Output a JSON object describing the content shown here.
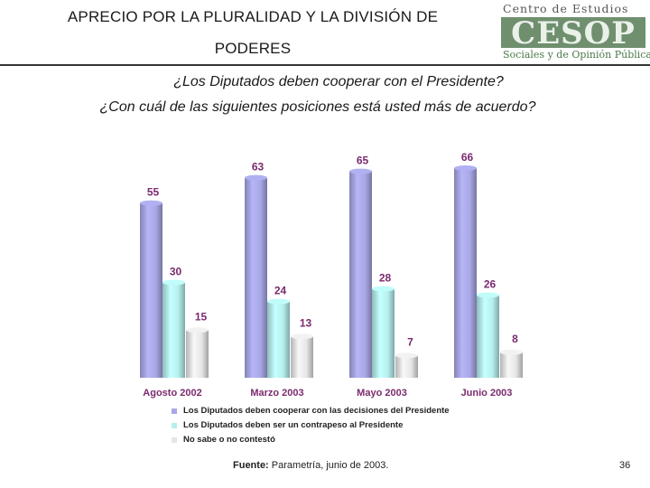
{
  "header": {
    "title_line_1": "APRECIO POR LA PLURALIDAD Y LA DIVISIÓN DE",
    "title_line_2": "PODERES"
  },
  "logo": {
    "top_text": "Centro de Estudios",
    "mark_text": "CESOP",
    "bottom_text": "Sociales y de Opinión Pública"
  },
  "questions": {
    "q1": "¿Los Diputados deben cooperar con el Presidente?",
    "q2": "¿Con cuál de las siguientes posiciones está usted más de acuerdo?"
  },
  "chart_data": {
    "type": "bar",
    "categories": [
      "Agosto 2002",
      "Marzo 2003",
      "Mayo 2003",
      "Junio 2003"
    ],
    "series": [
      {
        "name": "Los Diputados deben cooperar con las decisiones del Presidente",
        "values": [
          55,
          63,
          65,
          66
        ],
        "color": "#a9a8e6"
      },
      {
        "name": "Los Diputados deben ser un contrapeso al Presidente",
        "values": [
          30,
          24,
          28,
          26
        ],
        "color": "#b6f0ee"
      },
      {
        "name": "No sabe o no contestó",
        "values": [
          15,
          13,
          7,
          8
        ],
        "color": "#e6e6e6"
      }
    ],
    "ylim": [
      0,
      70
    ],
    "label_color": "#7b2a6f",
    "legend_position": "bottom"
  },
  "footer": {
    "source_label": "Fuente:",
    "source_text": "Parametría, junio de 2003.",
    "page_number": "36"
  }
}
